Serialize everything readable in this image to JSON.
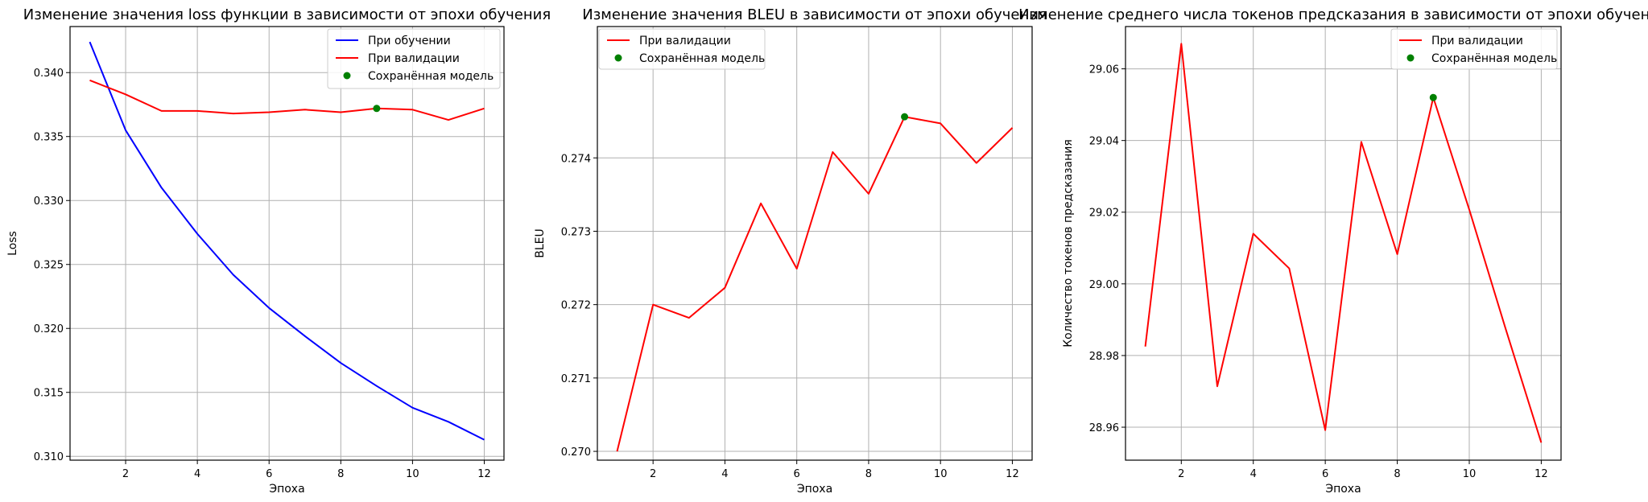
{
  "chart_data": [
    {
      "type": "line",
      "title": "Изменение значения loss функции в зависимости от эпохи обучения",
      "xlabel": "Эпоха",
      "ylabel": "Loss",
      "xlim": [
        0.45,
        12.55
      ],
      "ylim": [
        0.3097,
        0.3436
      ],
      "xticks": [
        2,
        4,
        6,
        8,
        10,
        12
      ],
      "yticks": [
        0.31,
        0.315,
        0.32,
        0.325,
        0.33,
        0.335,
        0.34
      ],
      "ytick_labels": [
        "0.310",
        "0.315",
        "0.320",
        "0.325",
        "0.330",
        "0.335",
        "0.340"
      ],
      "grid": true,
      "legend_position": "top-right",
      "x": [
        1,
        2,
        3,
        4,
        5,
        6,
        7,
        8,
        9,
        10,
        11,
        12
      ],
      "series": [
        {
          "name": "При обучении",
          "color": "#0000ff",
          "style": "line",
          "values": [
            0.3424,
            0.3355,
            0.331,
            0.3274,
            0.3242,
            0.3216,
            0.3194,
            0.3173,
            0.3155,
            0.3138,
            0.3127,
            0.3113
          ]
        },
        {
          "name": "При валидации",
          "color": "#ff0000",
          "style": "line",
          "values": [
            0.3394,
            0.3383,
            0.337,
            0.337,
            0.3368,
            0.3369,
            0.3371,
            0.3369,
            0.3372,
            0.3371,
            0.3363,
            0.3372
          ]
        },
        {
          "name": "Сохранённая модель",
          "color": "#008000",
          "style": "marker",
          "points": [
            [
              9,
              0.3372
            ]
          ]
        }
      ]
    },
    {
      "type": "line",
      "title": "Изменение значения BLEU в зависимости от эпохи обучения",
      "xlabel": "Эпоха",
      "ylabel": "BLEU",
      "xlim": [
        0.45,
        12.55
      ],
      "ylim": [
        0.26988,
        0.27579
      ],
      "xticks": [
        2,
        4,
        6,
        8,
        10,
        12
      ],
      "yticks": [
        0.27,
        0.271,
        0.272,
        0.273,
        0.274
      ],
      "ytick_labels": [
        "0.270",
        "0.271",
        "0.272",
        "0.273",
        "0.274"
      ],
      "grid": true,
      "legend_position": "top-left",
      "x": [
        1,
        2,
        3,
        4,
        5,
        6,
        7,
        8,
        9,
        10,
        11,
        12
      ],
      "series": [
        {
          "name": "При валидации",
          "color": "#ff0000",
          "style": "line",
          "values": [
            0.27,
            0.272,
            0.27182,
            0.27223,
            0.27338,
            0.27249,
            0.27408,
            0.27351,
            0.27456,
            0.27447,
            0.27393,
            0.27441
          ]
        },
        {
          "name": "Сохранённая модель",
          "color": "#008000",
          "style": "marker",
          "points": [
            [
              9,
              0.27456
            ]
          ]
        }
      ]
    },
    {
      "type": "line",
      "title": "Изменение среднего числа токенов предсказания в зависимости от эпохи обучения",
      "xlabel": "Эпоха",
      "ylabel": "Количество токенов предсказания",
      "xlim": [
        0.45,
        12.55
      ],
      "ylim": [
        28.9508,
        29.0718
      ],
      "xticks": [
        2,
        4,
        6,
        8,
        10,
        12
      ],
      "yticks": [
        28.96,
        28.98,
        29.0,
        29.02,
        29.04,
        29.06
      ],
      "ytick_labels": [
        "28.96",
        "28.98",
        "29.00",
        "29.02",
        "29.04",
        "29.06"
      ],
      "grid": true,
      "legend_position": "top-right",
      "x": [
        1,
        2,
        3,
        4,
        5,
        6,
        7,
        8,
        9,
        10,
        11,
        12
      ],
      "series": [
        {
          "name": "При валидации",
          "color": "#ff0000",
          "style": "line",
          "values": [
            28.9825,
            29.067,
            28.9714,
            29.014,
            29.0043,
            28.9592,
            29.0396,
            29.0083,
            29.052,
            29.0207,
            28.9878,
            28.9557
          ]
        },
        {
          "name": "Сохранённая модель",
          "color": "#008000",
          "style": "marker",
          "points": [
            [
              9,
              29.052
            ]
          ]
        }
      ]
    }
  ]
}
